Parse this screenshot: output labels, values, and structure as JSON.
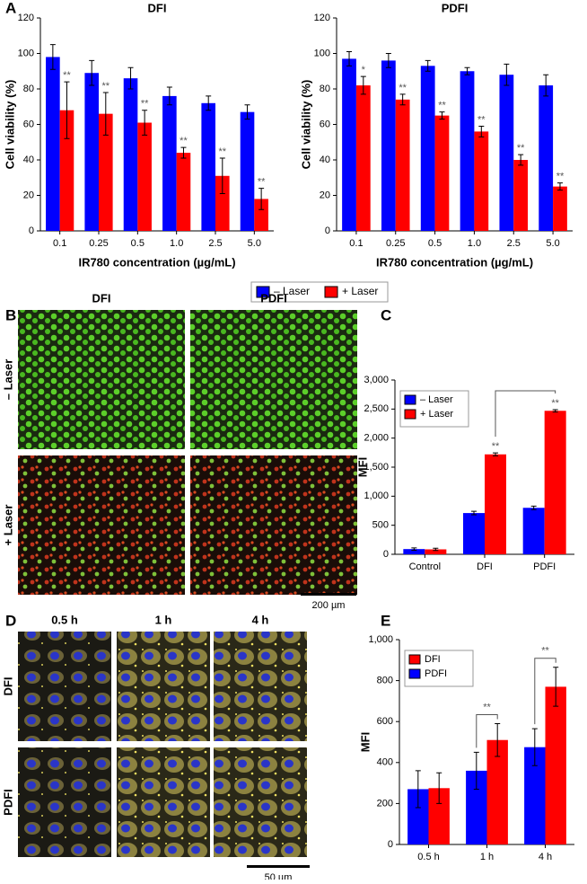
{
  "panel_labels": [
    "A",
    "B",
    "C",
    "D",
    "E"
  ],
  "chart_data": [
    {
      "type": "bar",
      "title": "DFI",
      "x_label": "IR780 concentration (µg/mL)",
      "y_label": "Cell viability (%)",
      "categories": [
        "0.1",
        "0.25",
        "0.5",
        "1.0",
        "2.5",
        "5.0"
      ],
      "series": [
        {
          "name": "– Laser",
          "color": "#0000ff",
          "values": [
            98,
            89,
            86,
            76,
            72,
            67
          ],
          "errors": [
            7,
            7,
            6,
            5,
            4,
            4
          ],
          "annotations": [
            null,
            null,
            null,
            null,
            null,
            null
          ]
        },
        {
          "name": "+ Laser",
          "color": "#ff0000",
          "values": [
            68,
            66,
            61,
            44,
            31,
            18
          ],
          "errors": [
            16,
            12,
            7,
            3,
            10,
            6
          ],
          "annotations": [
            "**",
            "**",
            "**",
            "**",
            "**",
            "**"
          ]
        }
      ],
      "ylim": [
        0,
        120
      ],
      "yticks": [
        0,
        20,
        40,
        60,
        80,
        100,
        120
      ],
      "legend": "bottom"
    },
    {
      "type": "bar",
      "title": "PDFI",
      "x_label": "IR780 concentration (µg/mL)",
      "y_label": "Cell viability (%)",
      "categories": [
        "0.1",
        "0.25",
        "0.5",
        "1.0",
        "2.5",
        "5.0"
      ],
      "series": [
        {
          "color": "#0000ff",
          "values": [
            97,
            96,
            93,
            90,
            88,
            82
          ],
          "errors": [
            4,
            4,
            3,
            2,
            6,
            6
          ],
          "annotations": [
            null,
            null,
            null,
            null,
            null,
            null
          ]
        },
        {
          "color": "#ff0000",
          "values": [
            82,
            74,
            65,
            56,
            40,
            25
          ],
          "errors": [
            5,
            3,
            2,
            3,
            3,
            2
          ],
          "annotations": [
            "*",
            "**",
            "**",
            "**",
            "**",
            "**"
          ]
        }
      ],
      "ylim": [
        0,
        120
      ],
      "yticks": [
        0,
        20,
        40,
        60,
        80,
        100,
        120
      ]
    },
    {
      "type": "bar",
      "y_label": "MFI",
      "categories": [
        "Control",
        "DFI",
        "PDFI"
      ],
      "series": [
        {
          "name": "– Laser",
          "color": "#0000ff",
          "values": [
            90,
            710,
            800
          ],
          "errors": [
            20,
            30,
            30
          ],
          "annotations": [
            null,
            null,
            null
          ]
        },
        {
          "name": "+ Laser",
          "color": "#ff0000",
          "values": [
            85,
            1720,
            2470
          ],
          "errors": [
            20,
            25,
            20
          ],
          "annotations": [
            null,
            "**",
            "**"
          ]
        }
      ],
      "ylim": [
        0,
        3000
      ],
      "yticks": [
        0,
        500,
        {
          "value": 1000,
          "label": "1,000"
        },
        {
          "value": 1500,
          "label": "1,500"
        },
        {
          "value": 2000,
          "label": "2,000"
        },
        {
          "value": 2500,
          "label": "2,500"
        },
        {
          "value": 3000,
          "label": "3,000"
        }
      ],
      "legend": "upper left"
    },
    {
      "type": "bar",
      "y_label": "MFI",
      "categories": [
        "0.5 h",
        "1 h",
        "4 h"
      ],
      "series": [
        {
          "name": "PDFI",
          "color": "#0000ff",
          "values": [
            270,
            360,
            475
          ],
          "errors": [
            90,
            90,
            90
          ]
        },
        {
          "name": "DFI",
          "color": "#ff0000",
          "values": [
            275,
            510,
            770
          ],
          "errors": [
            75,
            80,
            95
          ]
        }
      ],
      "bracket_labels": [
        null,
        "**",
        "**"
      ],
      "ylim": [
        0,
        1000
      ],
      "yticks": [
        0,
        200,
        400,
        600,
        800,
        {
          "value": 1000,
          "label": "1,000"
        }
      ],
      "legend": "upper left",
      "legend_reversed": true
    }
  ],
  "images_B": {
    "columns": [
      "DFI",
      "PDFI"
    ],
    "rows": [
      "– Laser",
      "+ Laser"
    ],
    "scale_bar": "200 µm"
  },
  "images_D": {
    "columns": [
      "0.5 h",
      "1 h",
      "4 h"
    ],
    "rows": [
      "DFI",
      "PDFI"
    ],
    "scale_bar": "50 µm"
  }
}
